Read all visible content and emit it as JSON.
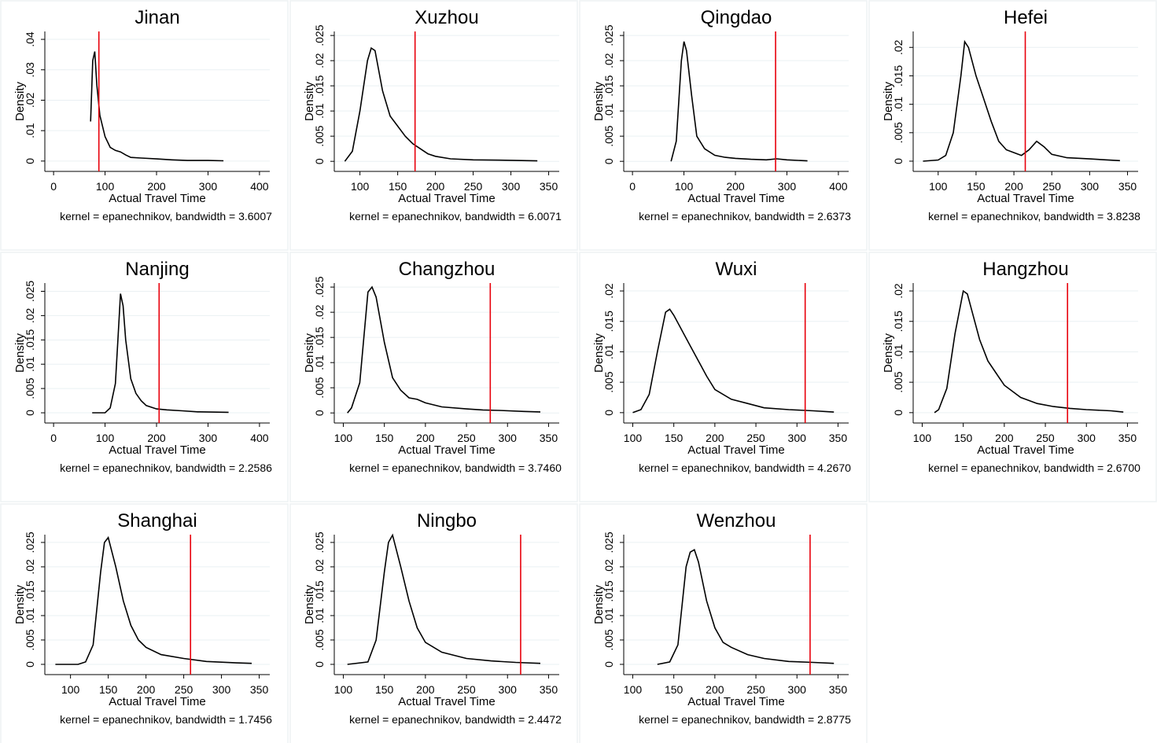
{
  "chart_data": [
    {
      "type": "line",
      "title": "Jinan",
      "xlabel": "Actual Travel Time",
      "ylabel": "Density",
      "note": "kernel = epanechnikov, bandwidth = 3.6007",
      "color": "#000000",
      "grid": true,
      "xlim": [
        -17,
        420
      ],
      "ylim": [
        -0.0034,
        0.0426
      ],
      "xticks": [
        0,
        100,
        200,
        300,
        400
      ],
      "yticks": [
        0,
        {
          "value": 0.01,
          "label": ".01"
        },
        {
          "value": 0.02,
          "label": ".02"
        },
        {
          "value": 0.03,
          "label": ".03"
        },
        {
          "value": 0.04,
          "label": ".04"
        }
      ],
      "x": [
        72,
        76,
        80,
        84,
        90,
        100,
        110,
        120,
        130,
        140,
        150,
        170,
        200,
        230,
        260,
        300,
        330
      ],
      "values": [
        0.013,
        0.033,
        0.036,
        0.025,
        0.015,
        0.008,
        0.0045,
        0.0035,
        0.003,
        0.002,
        0.0012,
        0.001,
        0.0007,
        0.0004,
        0.0002,
        0.0002,
        0.0001
      ],
      "vline": {
        "value": 88,
        "color": "#e8000b"
      }
    },
    {
      "type": "line",
      "title": "Xuzhou",
      "xlabel": "Actual Travel Time",
      "ylabel": "Density",
      "note": "kernel = epanechnikov, bandwidth = 6.0071",
      "color": "#000000",
      "grid": true,
      "xlim": [
        66,
        364
      ],
      "ylim": [
        -0.002,
        0.0258
      ],
      "xticks": [
        100,
        150,
        200,
        250,
        300,
        350
      ],
      "yticks": [
        0,
        {
          "value": 0.005,
          "label": ".005"
        },
        {
          "value": 0.01,
          "label": ".01"
        },
        {
          "value": 0.015,
          "label": ".015"
        },
        {
          "value": 0.02,
          "label": ".02"
        },
        {
          "value": 0.025,
          "label": ".025"
        }
      ],
      "x": [
        80,
        90,
        100,
        110,
        115,
        120,
        130,
        140,
        150,
        160,
        170,
        180,
        190,
        200,
        220,
        250,
        300,
        335
      ],
      "values": [
        0,
        0.002,
        0.01,
        0.02,
        0.0225,
        0.022,
        0.014,
        0.009,
        0.007,
        0.005,
        0.0035,
        0.0025,
        0.0015,
        0.001,
        0.0005,
        0.0003,
        0.0002,
        0.0001
      ],
      "vline": {
        "value": 173,
        "color": "#e8000b"
      }
    },
    {
      "type": "line",
      "title": "Qingdao",
      "xlabel": "Actual Travel Time",
      "ylabel": "Density",
      "note": "kernel = epanechnikov, bandwidth = 2.6373",
      "color": "#000000",
      "grid": true,
      "xlim": [
        -17,
        420
      ],
      "ylim": [
        -0.002,
        0.0258
      ],
      "xticks": [
        0,
        100,
        200,
        300,
        400
      ],
      "yticks": [
        0,
        {
          "value": 0.005,
          "label": ".005"
        },
        {
          "value": 0.01,
          "label": ".01"
        },
        {
          "value": 0.015,
          "label": ".015"
        },
        {
          "value": 0.02,
          "label": ".02"
        },
        {
          "value": 0.025,
          "label": ".025"
        }
      ],
      "x": [
        75,
        85,
        95,
        100,
        105,
        115,
        125,
        140,
        160,
        180,
        200,
        230,
        260,
        280,
        300,
        340
      ],
      "values": [
        0,
        0.004,
        0.02,
        0.0238,
        0.022,
        0.013,
        0.005,
        0.0025,
        0.0012,
        0.0008,
        0.0006,
        0.0004,
        0.0003,
        0.0005,
        0.0003,
        0.0001
      ],
      "vline": {
        "value": 278,
        "color": "#e8000b"
      }
    },
    {
      "type": "line",
      "title": "Hefei",
      "xlabel": "Actual Travel Time",
      "ylabel": "Density",
      "note": "kernel = epanechnikov, bandwidth = 3.8238",
      "color": "#000000",
      "grid": true,
      "xlim": [
        67,
        364
      ],
      "ylim": [
        -0.0018,
        0.0228
      ],
      "xticks": [
        100,
        150,
        200,
        250,
        300,
        350
      ],
      "yticks": [
        0,
        {
          "value": 0.005,
          "label": ".005"
        },
        {
          "value": 0.01,
          "label": ".01"
        },
        {
          "value": 0.015,
          "label": ".015"
        },
        {
          "value": 0.02,
          "label": ".02"
        }
      ],
      "x": [
        80,
        100,
        110,
        120,
        130,
        135,
        140,
        150,
        160,
        170,
        180,
        190,
        200,
        210,
        220,
        230,
        240,
        250,
        270,
        300,
        340
      ],
      "values": [
        0,
        0.0002,
        0.001,
        0.005,
        0.015,
        0.021,
        0.02,
        0.015,
        0.011,
        0.007,
        0.0035,
        0.002,
        0.0015,
        0.001,
        0.002,
        0.0035,
        0.0025,
        0.0012,
        0.0006,
        0.0004,
        0.0001
      ],
      "vline": {
        "value": 215,
        "color": "#e8000b"
      }
    },
    {
      "type": "line",
      "title": "Nanjing",
      "xlabel": "Actual Travel Time",
      "ylabel": "Density",
      "note": "kernel = epanechnikov, bandwidth = 2.2586",
      "color": "#000000",
      "grid": true,
      "xlim": [
        -17,
        420
      ],
      "ylim": [
        -0.0021,
        0.0267
      ],
      "xticks": [
        0,
        100,
        200,
        300,
        400
      ],
      "yticks": [
        0,
        {
          "value": 0.005,
          "label": ".005"
        },
        {
          "value": 0.01,
          "label": ".01"
        },
        {
          "value": 0.015,
          "label": ".015"
        },
        {
          "value": 0.02,
          "label": ".02"
        },
        {
          "value": 0.025,
          "label": ".025"
        }
      ],
      "x": [
        75,
        100,
        110,
        120,
        125,
        130,
        135,
        140,
        150,
        160,
        170,
        180,
        200,
        220,
        250,
        280,
        340
      ],
      "values": [
        0,
        0,
        0.001,
        0.006,
        0.015,
        0.0245,
        0.022,
        0.015,
        0.007,
        0.004,
        0.0025,
        0.0015,
        0.0008,
        0.0006,
        0.0004,
        0.0002,
        0.0001
      ],
      "vline": {
        "value": 205,
        "color": "#e8000b"
      }
    },
    {
      "type": "line",
      "title": "Changzhou",
      "xlabel": "Actual Travel Time",
      "ylabel": "Density",
      "note": "kernel = epanechnikov, bandwidth = 3.7460",
      "color": "#000000",
      "grid": true,
      "xlim": [
        89,
        363
      ],
      "ylim": [
        -0.002,
        0.0258
      ],
      "xticks": [
        100,
        150,
        200,
        250,
        300,
        350
      ],
      "yticks": [
        0,
        {
          "value": 0.005,
          "label": ".005"
        },
        {
          "value": 0.01,
          "label": ".01"
        },
        {
          "value": 0.015,
          "label": ".015"
        },
        {
          "value": 0.02,
          "label": ".02"
        },
        {
          "value": 0.025,
          "label": ".025"
        }
      ],
      "x": [
        105,
        110,
        120,
        125,
        130,
        135,
        140,
        150,
        160,
        170,
        180,
        190,
        200,
        220,
        250,
        270,
        290,
        320,
        340
      ],
      "values": [
        0,
        0.001,
        0.006,
        0.015,
        0.024,
        0.025,
        0.023,
        0.014,
        0.007,
        0.0045,
        0.003,
        0.0027,
        0.002,
        0.0012,
        0.0008,
        0.0006,
        0.0005,
        0.0003,
        0.0002
      ],
      "vline": {
        "value": 279,
        "color": "#e8000b"
      }
    },
    {
      "type": "line",
      "title": "Wuxi",
      "xlabel": "Actual Travel Time",
      "ylabel": "Density",
      "note": "kernel = epanechnikov, bandwidth = 4.2670",
      "color": "#000000",
      "grid": true,
      "xlim": [
        89,
        363
      ],
      "ylim": [
        -0.0017,
        0.0213
      ],
      "xticks": [
        100,
        150,
        200,
        250,
        300,
        350
      ],
      "yticks": [
        0,
        {
          "value": 0.005,
          "label": ".005"
        },
        {
          "value": 0.01,
          "label": ".01"
        },
        {
          "value": 0.015,
          "label": ".015"
        },
        {
          "value": 0.02,
          "label": ".02"
        }
      ],
      "x": [
        100,
        110,
        120,
        130,
        140,
        145,
        150,
        170,
        190,
        200,
        220,
        240,
        260,
        290,
        320,
        345
      ],
      "values": [
        0,
        0.0005,
        0.003,
        0.01,
        0.0165,
        0.017,
        0.016,
        0.011,
        0.006,
        0.0038,
        0.0022,
        0.0015,
        0.0008,
        0.0005,
        0.0003,
        0.0001
      ],
      "vline": {
        "value": 310,
        "color": "#e8000b"
      }
    },
    {
      "type": "line",
      "title": "Hangzhou",
      "xlabel": "Actual Travel Time",
      "ylabel": "Density",
      "note": "kernel = epanechnikov, bandwidth = 2.6700",
      "color": "#000000",
      "grid": true,
      "xlim": [
        89,
        363
      ],
      "ylim": [
        -0.0017,
        0.0213
      ],
      "xticks": [
        100,
        150,
        200,
        250,
        300,
        350
      ],
      "yticks": [
        0,
        {
          "value": 0.005,
          "label": ".005"
        },
        {
          "value": 0.01,
          "label": ".01"
        },
        {
          "value": 0.015,
          "label": ".015"
        },
        {
          "value": 0.02,
          "label": ".02"
        }
      ],
      "x": [
        115,
        120,
        130,
        140,
        150,
        155,
        160,
        170,
        180,
        190,
        200,
        220,
        240,
        260,
        280,
        300,
        330,
        345
      ],
      "values": [
        0,
        0.0005,
        0.004,
        0.013,
        0.02,
        0.0195,
        0.017,
        0.012,
        0.0085,
        0.0065,
        0.0045,
        0.0025,
        0.0015,
        0.001,
        0.0007,
        0.0005,
        0.0003,
        0.0001
      ],
      "vline": {
        "value": 277,
        "color": "#e8000b"
      }
    },
    {
      "type": "line",
      "title": "Shanghai",
      "xlabel": "Actual Travel Time",
      "ylabel": "Density",
      "note": "kernel = epanechnikov, bandwidth = 1.7456",
      "color": "#000000",
      "grid": true,
      "xlim": [
        66,
        364
      ],
      "ylim": [
        -0.0021,
        0.0266
      ],
      "xticks": [
        100,
        150,
        200,
        250,
        300,
        350
      ],
      "yticks": [
        0,
        {
          "value": 0.005,
          "label": ".005"
        },
        {
          "value": 0.01,
          "label": ".01"
        },
        {
          "value": 0.015,
          "label": ".015"
        },
        {
          "value": 0.02,
          "label": ".02"
        },
        {
          "value": 0.025,
          "label": ".025"
        }
      ],
      "x": [
        80,
        110,
        120,
        130,
        140,
        145,
        150,
        160,
        170,
        180,
        190,
        200,
        220,
        250,
        280,
        320,
        340
      ],
      "values": [
        0,
        0,
        0.0005,
        0.004,
        0.019,
        0.025,
        0.026,
        0.02,
        0.013,
        0.008,
        0.005,
        0.0035,
        0.002,
        0.0012,
        0.0006,
        0.0003,
        0.0002
      ],
      "vline": {
        "value": 259,
        "color": "#e8000b"
      }
    },
    {
      "type": "line",
      "title": "Ningbo",
      "xlabel": "Actual Travel Time",
      "ylabel": "Density",
      "note": "kernel = epanechnikov, bandwidth = 2.4472",
      "color": "#000000",
      "grid": true,
      "xlim": [
        89,
        363
      ],
      "ylim": [
        -0.0021,
        0.0266
      ],
      "xticks": [
        100,
        150,
        200,
        250,
        300,
        350
      ],
      "yticks": [
        0,
        {
          "value": 0.005,
          "label": ".005"
        },
        {
          "value": 0.01,
          "label": ".01"
        },
        {
          "value": 0.015,
          "label": ".015"
        },
        {
          "value": 0.02,
          "label": ".02"
        },
        {
          "value": 0.025,
          "label": ".025"
        }
      ],
      "x": [
        105,
        130,
        140,
        150,
        155,
        160,
        170,
        180,
        190,
        200,
        220,
        250,
        280,
        310,
        340
      ],
      "values": [
        0,
        0.0005,
        0.005,
        0.019,
        0.025,
        0.0265,
        0.02,
        0.013,
        0.0075,
        0.0045,
        0.0025,
        0.0012,
        0.0007,
        0.0004,
        0.0002
      ],
      "vline": {
        "value": 316,
        "color": "#e8000b"
      }
    },
    {
      "type": "line",
      "title": "Wenzhou",
      "xlabel": "Actual Travel Time",
      "ylabel": "Density",
      "note": "kernel = epanechnikov, bandwidth = 2.8775",
      "color": "#000000",
      "grid": true,
      "xlim": [
        89,
        363
      ],
      "ylim": [
        -0.0021,
        0.0266
      ],
      "xticks": [
        100,
        150,
        200,
        250,
        300,
        350
      ],
      "yticks": [
        0,
        {
          "value": 0.005,
          "label": ".005"
        },
        {
          "value": 0.01,
          "label": ".01"
        },
        {
          "value": 0.015,
          "label": ".015"
        },
        {
          "value": 0.02,
          "label": ".02"
        },
        {
          "value": 0.025,
          "label": ".025"
        }
      ],
      "x": [
        130,
        145,
        155,
        165,
        170,
        175,
        180,
        190,
        200,
        210,
        220,
        240,
        260,
        290,
        320,
        345
      ],
      "values": [
        0,
        0.0005,
        0.004,
        0.02,
        0.023,
        0.0235,
        0.021,
        0.013,
        0.0075,
        0.0045,
        0.0035,
        0.002,
        0.0012,
        0.0006,
        0.0004,
        0.0002
      ],
      "vline": {
        "value": 316,
        "color": "#e8000b"
      }
    }
  ]
}
